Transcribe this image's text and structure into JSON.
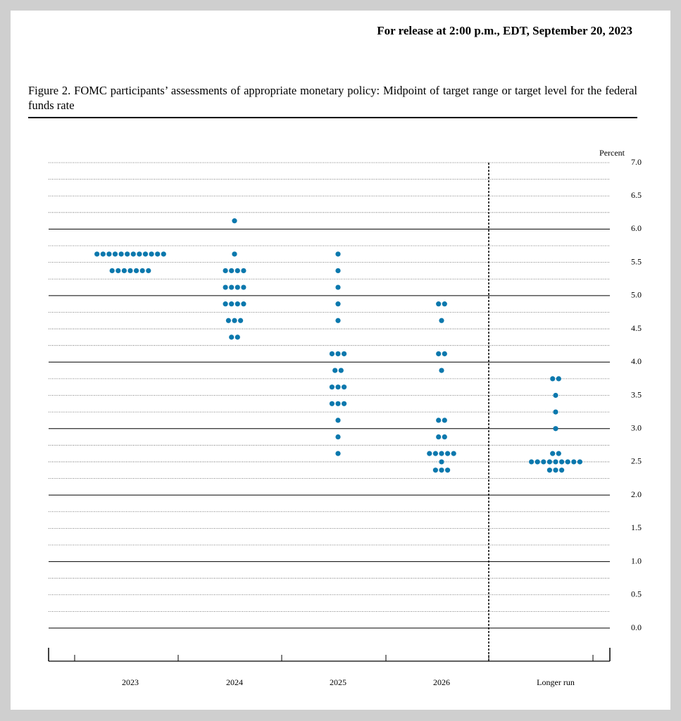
{
  "header": "For release at 2:00 p.m., EDT, September 20, 2023",
  "caption": "Figure 2.  FOMC participants’ assessments of appropriate monetary policy:  Midpoint of target range or target level for the federal funds rate",
  "chart_data": {
    "type": "dot",
    "ylabel": "Percent",
    "color": "#0b78ad",
    "categories": [
      "2023",
      "2024",
      "2025",
      "2026",
      "Longer run"
    ],
    "dots": [
      [
        {
          "value": 5.625,
          "count": 12
        },
        {
          "value": 5.375,
          "count": 7
        }
      ],
      [
        {
          "value": 6.125,
          "count": 1
        },
        {
          "value": 5.625,
          "count": 1
        },
        {
          "value": 5.375,
          "count": 4
        },
        {
          "value": 5.125,
          "count": 4
        },
        {
          "value": 4.875,
          "count": 4
        },
        {
          "value": 4.625,
          "count": 3
        },
        {
          "value": 4.375,
          "count": 2
        }
      ],
      [
        {
          "value": 5.625,
          "count": 1
        },
        {
          "value": 5.375,
          "count": 1
        },
        {
          "value": 5.125,
          "count": 1
        },
        {
          "value": 4.875,
          "count": 1
        },
        {
          "value": 4.625,
          "count": 1
        },
        {
          "value": 4.125,
          "count": 3
        },
        {
          "value": 3.875,
          "count": 2
        },
        {
          "value": 3.625,
          "count": 3
        },
        {
          "value": 3.375,
          "count": 3
        },
        {
          "value": 3.125,
          "count": 1
        },
        {
          "value": 2.875,
          "count": 1
        },
        {
          "value": 2.625,
          "count": 1
        }
      ],
      [
        {
          "value": 4.875,
          "count": 2
        },
        {
          "value": 4.625,
          "count": 1
        },
        {
          "value": 4.125,
          "count": 2
        },
        {
          "value": 3.875,
          "count": 1
        },
        {
          "value": 3.125,
          "count": 2
        },
        {
          "value": 2.875,
          "count": 2
        },
        {
          "value": 2.625,
          "count": 5
        },
        {
          "value": 2.5,
          "count": 1
        },
        {
          "value": 2.375,
          "count": 3
        }
      ],
      [
        {
          "value": 3.75,
          "count": 2
        },
        {
          "value": 3.5,
          "count": 1
        },
        {
          "value": 3.25,
          "count": 1
        },
        {
          "value": 3.0,
          "count": 1
        },
        {
          "value": 2.625,
          "count": 2
        },
        {
          "value": 2.5,
          "count": 9
        },
        {
          "value": 2.375,
          "count": 3
        }
      ]
    ],
    "ylim": [
      0,
      7
    ],
    "yticks": [
      {
        "value": 0,
        "label": "0.0"
      },
      0.5,
      {
        "value": 1,
        "label": "1.0"
      },
      1.5,
      {
        "value": 2,
        "label": "2.0"
      },
      2.5,
      {
        "value": 3,
        "label": "3.0"
      },
      3.5,
      {
        "value": 4,
        "label": "4.0"
      },
      4.5,
      {
        "value": 5,
        "label": "5.0"
      },
      5.5,
      {
        "value": 6,
        "label": "6.0"
      },
      6.5,
      {
        "value": 7,
        "label": "7.0"
      }
    ],
    "minor_yticks": [
      0.25,
      0.75,
      1.25,
      1.75,
      2.25,
      2.75,
      3.25,
      3.75,
      4.25,
      4.75,
      5.25,
      5.75,
      6.25,
      6.75
    ],
    "grid": true
  }
}
